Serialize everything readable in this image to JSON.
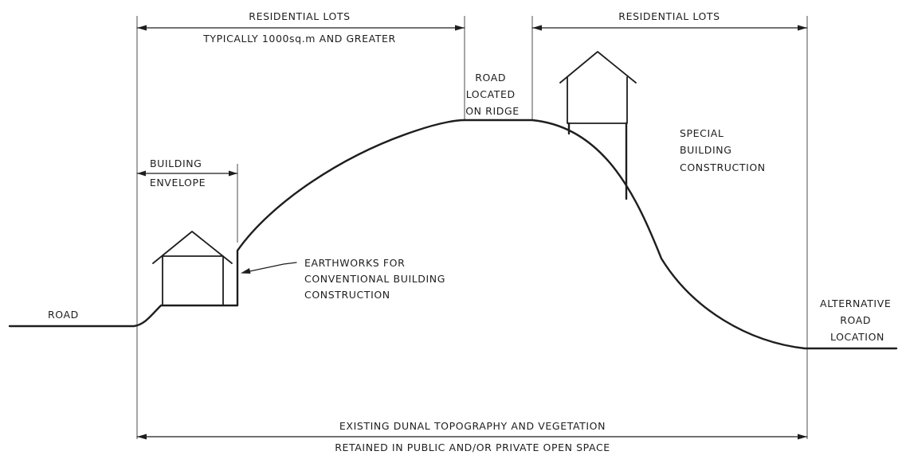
{
  "labels": {
    "residential_lots_left": "RESIDENTIAL LOTS",
    "lot_size_note": "TYPICALLY 1000sq.m AND GREATER",
    "residential_lots_right": "RESIDENTIAL LOTS",
    "road_on_ridge": [
      "ROAD",
      "LOCATED",
      "ON RIDGE"
    ],
    "building_envelope": [
      "BUILDING",
      "ENVELOPE"
    ],
    "earthworks": [
      "EARTHWORKS FOR",
      "CONVENTIONAL BUILDING",
      "CONSTRUCTION"
    ],
    "special_building": [
      "SPECIAL",
      "BUILDING",
      "CONSTRUCTION"
    ],
    "road_left": "ROAD",
    "alternative_road": [
      "ALTERNATIVE",
      "ROAD",
      "LOCATION"
    ],
    "dunal_topography": "EXISTING DUNAL TOPOGRAPHY AND VEGETATION",
    "open_space": "RETAINED IN PUBLIC AND/OR PRIVATE OPEN SPACE"
  }
}
